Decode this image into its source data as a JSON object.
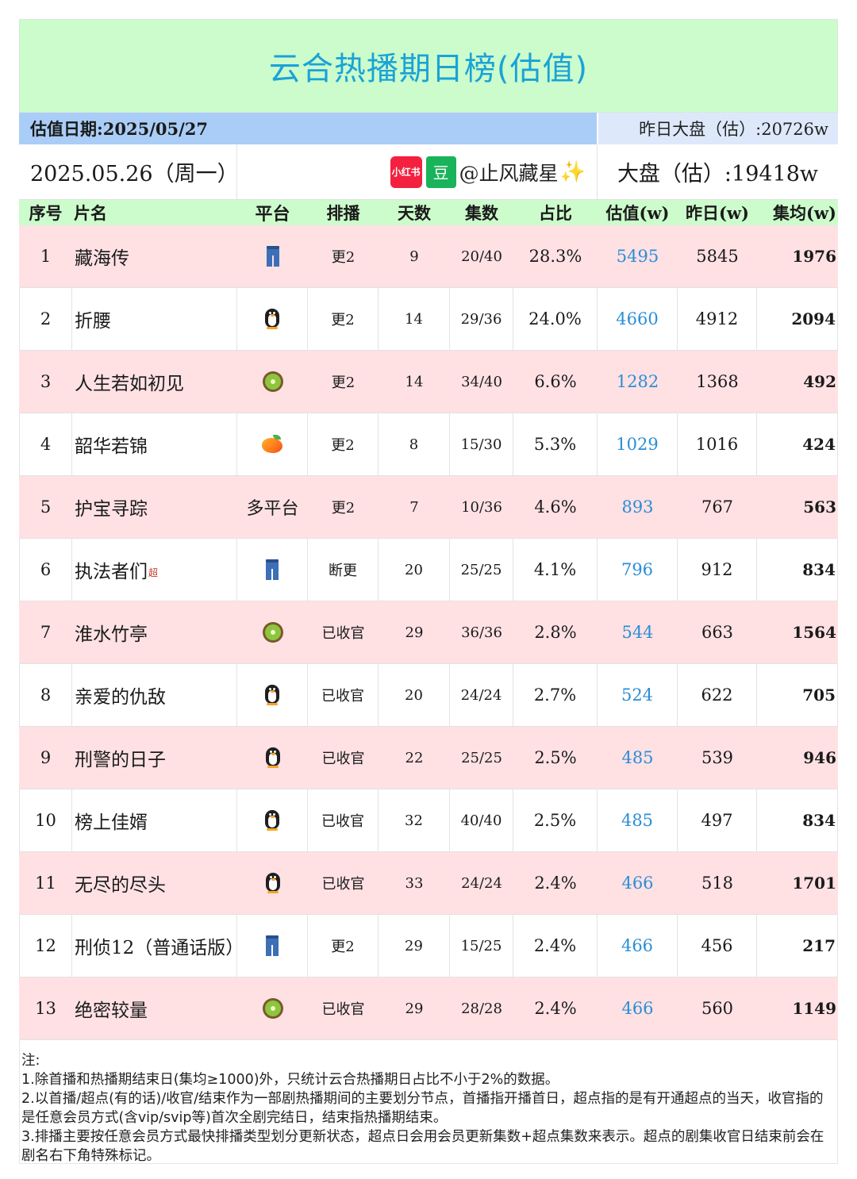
{
  "title": "云合热播期日榜(估值)",
  "valuation_date": "估值日期:2025/05/27",
  "yesterday_total": "昨日大盘（估）:20726w",
  "day_label": "2025.05.26（周一）",
  "badge_xhs": "小红书",
  "badge_dou": "豆",
  "handle": "@止风藏星",
  "sparkle": "✨",
  "total": "大盘（估）:19418w",
  "headers": {
    "rank": "序号",
    "name": "片名",
    "platform": "平台",
    "schedule": "排播",
    "days": "天数",
    "episodes": "集数",
    "share": "占比",
    "estimate": "估值(w)",
    "yesterday": "昨日(w)",
    "avg": "集均(w)"
  },
  "rows": [
    {
      "rank": "1",
      "name": "藏海传",
      "sup": "",
      "platform_icon": "jeans-icon",
      "platform_text": "",
      "schedule": "更2",
      "days": "9",
      "episodes": "20/40",
      "share": "28.3%",
      "estimate": "5495",
      "yesterday": "5845",
      "avg": "1976"
    },
    {
      "rank": "2",
      "name": "折腰",
      "sup": "",
      "platform_icon": "penguin-icon",
      "platform_text": "",
      "schedule": "更2",
      "days": "14",
      "episodes": "29/36",
      "share": "24.0%",
      "estimate": "4660",
      "yesterday": "4912",
      "avg": "2094"
    },
    {
      "rank": "3",
      "name": "人生若如初见",
      "sup": "",
      "platform_icon": "kiwi-icon",
      "platform_text": "",
      "schedule": "更2",
      "days": "14",
      "episodes": "34/40",
      "share": "6.6%",
      "estimate": "1282",
      "yesterday": "1368",
      "avg": "492"
    },
    {
      "rank": "4",
      "name": "韶华若锦",
      "sup": "",
      "platform_icon": "mango-icon",
      "platform_text": "",
      "schedule": "更2",
      "days": "8",
      "episodes": "15/30",
      "share": "5.3%",
      "estimate": "1029",
      "yesterday": "1016",
      "avg": "424"
    },
    {
      "rank": "5",
      "name": "护宝寻踪",
      "sup": "",
      "platform_icon": "",
      "platform_text": "多平台",
      "schedule": "更2",
      "days": "7",
      "episodes": "10/36",
      "share": "4.6%",
      "estimate": "893",
      "yesterday": "767",
      "avg": "563"
    },
    {
      "rank": "6",
      "name": "执法者们",
      "sup": "超",
      "platform_icon": "jeans-icon",
      "platform_text": "",
      "schedule": "断更",
      "days": "20",
      "episodes": "25/25",
      "share": "4.1%",
      "estimate": "796",
      "yesterday": "912",
      "avg": "834"
    },
    {
      "rank": "7",
      "name": "淮水竹亭",
      "sup": "",
      "platform_icon": "kiwi-icon",
      "platform_text": "",
      "schedule": "已收官",
      "days": "29",
      "episodes": "36/36",
      "share": "2.8%",
      "estimate": "544",
      "yesterday": "663",
      "avg": "1564"
    },
    {
      "rank": "8",
      "name": "亲爱的仇敌",
      "sup": "",
      "platform_icon": "penguin-icon",
      "platform_text": "",
      "schedule": "已收官",
      "days": "20",
      "episodes": "24/24",
      "share": "2.7%",
      "estimate": "524",
      "yesterday": "622",
      "avg": "705"
    },
    {
      "rank": "9",
      "name": "刑警的日子",
      "sup": "",
      "platform_icon": "penguin-icon",
      "platform_text": "",
      "schedule": "已收官",
      "days": "22",
      "episodes": "25/25",
      "share": "2.5%",
      "estimate": "485",
      "yesterday": "539",
      "avg": "946"
    },
    {
      "rank": "10",
      "name": "榜上佳婿",
      "sup": "",
      "platform_icon": "penguin-icon",
      "platform_text": "",
      "schedule": "已收官",
      "days": "32",
      "episodes": "40/40",
      "share": "2.5%",
      "estimate": "485",
      "yesterday": "497",
      "avg": "834"
    },
    {
      "rank": "11",
      "name": "无尽的尽头",
      "sup": "",
      "platform_icon": "penguin-icon",
      "platform_text": "",
      "schedule": "已收官",
      "days": "33",
      "episodes": "24/24",
      "share": "2.4%",
      "estimate": "466",
      "yesterday": "518",
      "avg": "1701"
    },
    {
      "rank": "12",
      "name": "刑侦12（普通话版）",
      "sup": "",
      "platform_icon": "jeans-icon",
      "platform_text": "",
      "schedule": "更2",
      "days": "29",
      "episodes": "15/25",
      "share": "2.4%",
      "estimate": "466",
      "yesterday": "456",
      "avg": "217"
    },
    {
      "rank": "13",
      "name": "绝密较量",
      "sup": "",
      "platform_icon": "kiwi-icon",
      "platform_text": "",
      "schedule": "已收官",
      "days": "29",
      "episodes": "28/28",
      "share": "2.4%",
      "estimate": "466",
      "yesterday": "560",
      "avg": "1149"
    }
  ],
  "notes": [
    "注:",
    "1.除首播和热播期结束日(集均≥1000)外，只统计云合热播期日占比不小于2%的数据。",
    "2.以首播/超点(有的话)/收官/结束作为一部剧热播期间的主要划分节点，首播指开播首日，超点指的是有开通超点的当天，收官指的是任意会员方式(含vip/svip等)首次全剧完结日，结束指热播期结束。",
    "3.排播主要按任意会员方式最快排播类型划分更新状态，超点日会用会员更新集数+超点集数来表示。超点的剧集收官日结束前会在剧名右下角特殊标记。"
  ],
  "colors": {
    "title_bg": "#ccfccc",
    "title_text": "#1aa3d6",
    "date_bar": "#a9cdf6",
    "pink_row": "#ffe1e4",
    "estimate_text": "#2a8ed6"
  }
}
